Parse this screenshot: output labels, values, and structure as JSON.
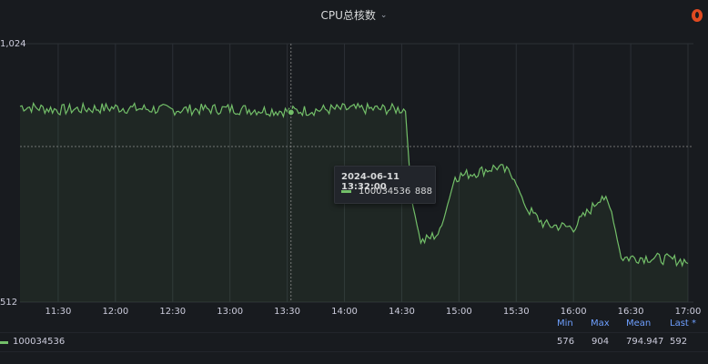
{
  "panel": {
    "title": "CPU总核数",
    "menu_icon": "chevron-down-icon",
    "corner_icon": "alert-icon",
    "corner_color": "#e04a21"
  },
  "chart_data": {
    "type": "line",
    "yaxis": {
      "ticks": [
        "1,024",
        "512"
      ]
    },
    "xaxis": {
      "ticks": [
        "11:30",
        "12:00",
        "12:30",
        "13:00",
        "13:30",
        "14:00",
        "14:30",
        "15:00",
        "15:30",
        "16:00",
        "16:30",
        "17:00"
      ]
    },
    "series": [
      {
        "name": "100034536",
        "color": "#73bf69",
        "trend": [
          {
            "t": "11:10",
            "v": 900
          },
          {
            "t": "11:30",
            "v": 893
          },
          {
            "t": "12:00",
            "v": 897
          },
          {
            "t": "12:30",
            "v": 893
          },
          {
            "t": "13:00",
            "v": 895
          },
          {
            "t": "13:30",
            "v": 890
          },
          {
            "t": "14:00",
            "v": 895
          },
          {
            "t": "14:32",
            "v": 894
          },
          {
            "t": "14:35",
            "v": 720
          },
          {
            "t": "14:40",
            "v": 630
          },
          {
            "t": "14:50",
            "v": 650
          },
          {
            "t": "14:58",
            "v": 760
          },
          {
            "t": "15:10",
            "v": 770
          },
          {
            "t": "15:20",
            "v": 780
          },
          {
            "t": "15:28",
            "v": 765
          },
          {
            "t": "15:35",
            "v": 700
          },
          {
            "t": "15:45",
            "v": 665
          },
          {
            "t": "16:00",
            "v": 660
          },
          {
            "t": "16:10",
            "v": 700
          },
          {
            "t": "16:15",
            "v": 725
          },
          {
            "t": "16:20",
            "v": 690
          },
          {
            "t": "16:25",
            "v": 600
          },
          {
            "t": "16:40",
            "v": 600
          },
          {
            "t": "17:00",
            "v": 593
          }
        ]
      }
    ],
    "cursor": {
      "time": "2024-06-11 13:32:00",
      "value": "888"
    },
    "legend": {
      "headers": [
        "Min",
        "Max",
        "Mean",
        "Last *"
      ],
      "values": [
        "576",
        "904",
        "794.947",
        "592"
      ],
      "header_color": "#6e9fff"
    }
  }
}
